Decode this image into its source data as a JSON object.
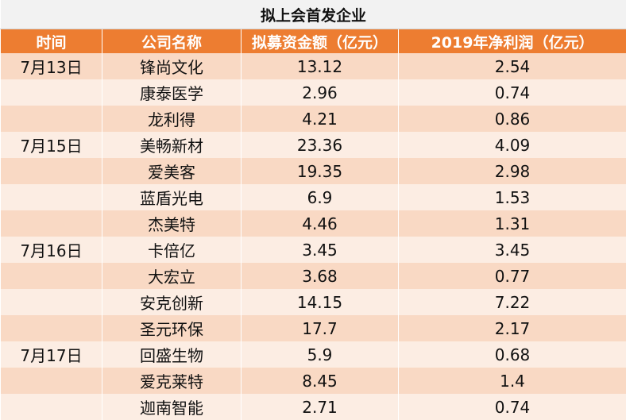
{
  "table": {
    "title": "拟上会首发企业",
    "headers": [
      "时间",
      "公司名称",
      "拟募资金额（亿元）",
      "2019年净利润（亿元）"
    ],
    "rows": [
      {
        "date": "7月13日",
        "company": "锋尚文化",
        "raise": "13.12",
        "profit": "2.54"
      },
      {
        "date": "",
        "company": "康泰医学",
        "raise": "2.96",
        "profit": "0.74"
      },
      {
        "date": "",
        "company": "龙利得",
        "raise": "4.21",
        "profit": "0.86"
      },
      {
        "date": "7月15日",
        "company": "美畅新材",
        "raise": "23.36",
        "profit": "4.09"
      },
      {
        "date": "",
        "company": "爱美客",
        "raise": "19.35",
        "profit": "2.98"
      },
      {
        "date": "",
        "company": "蓝盾光电",
        "raise": "6.9",
        "profit": "1.53"
      },
      {
        "date": "",
        "company": "杰美特",
        "raise": "4.46",
        "profit": "1.31"
      },
      {
        "date": "7月16日",
        "company": "卡倍亿",
        "raise": "3.45",
        "profit": "3.45"
      },
      {
        "date": "",
        "company": "大宏立",
        "raise": "3.68",
        "profit": "0.77"
      },
      {
        "date": "",
        "company": "安克创新",
        "raise": "14.15",
        "profit": "7.22"
      },
      {
        "date": "",
        "company": "圣元环保",
        "raise": "17.7",
        "profit": "2.17"
      },
      {
        "date": "7月17日",
        "company": "回盛生物",
        "raise": "5.9",
        "profit": "0.68"
      },
      {
        "date": "",
        "company": "爱克莱特",
        "raise": "8.45",
        "profit": "1.4"
      },
      {
        "date": "",
        "company": "迦南智能",
        "raise": "2.71",
        "profit": "0.74"
      }
    ]
  },
  "colors": {
    "header_bg": "#ed7d31",
    "row_odd_bg": "#f9d9c4",
    "row_even_bg": "#fcede3",
    "title_bg": "#f2f2f2"
  }
}
